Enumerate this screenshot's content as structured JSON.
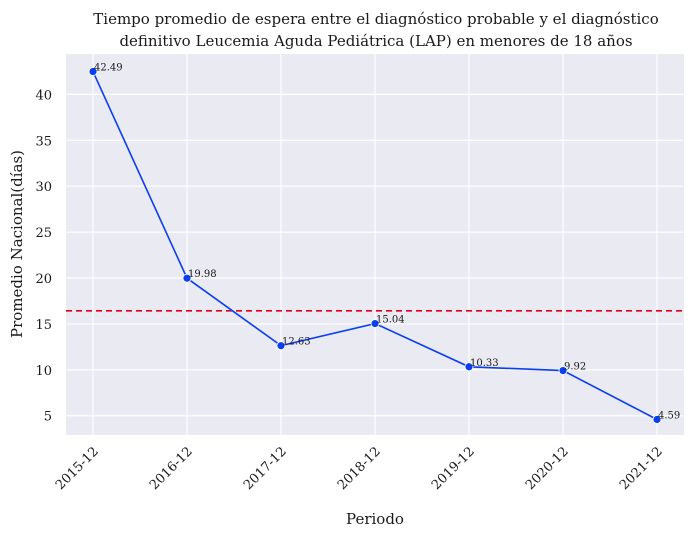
{
  "chart_data": {
    "type": "line",
    "title": "Tiempo promedio de espera entre el diagnóstico probable y el diagnóstico",
    "subtitle": "definitivo Leucemia Aguda Pediátrica (LAP) en menores de 18 años",
    "xlabel": "Periodo",
    "ylabel": "Promedio Nacional(días)",
    "categories": [
      "2015-12",
      "2016-12",
      "2017-12",
      "2018-12",
      "2019-12",
      "2020-12",
      "2021-12"
    ],
    "series": [
      {
        "values": [
          42.49,
          19.98,
          12.63,
          15.04,
          10.33,
          9.92,
          4.59
        ]
      }
    ],
    "data_labels": [
      "42.49",
      "19.98",
      "12.63",
      "15.04",
      "10.33",
      "9.92",
      "4.59"
    ],
    "reference_line": {
      "value": 16.43,
      "style": "dashed"
    },
    "ylim": [
      2.9,
      44.4
    ],
    "yticks": [
      5,
      10,
      15,
      20,
      25,
      30,
      35,
      40
    ],
    "grid": true,
    "colors": {
      "line": "#0a3ff0",
      "reference_line": "#e0001b",
      "plot_background": "#eaeaf2",
      "grid": "#ffffff"
    }
  }
}
